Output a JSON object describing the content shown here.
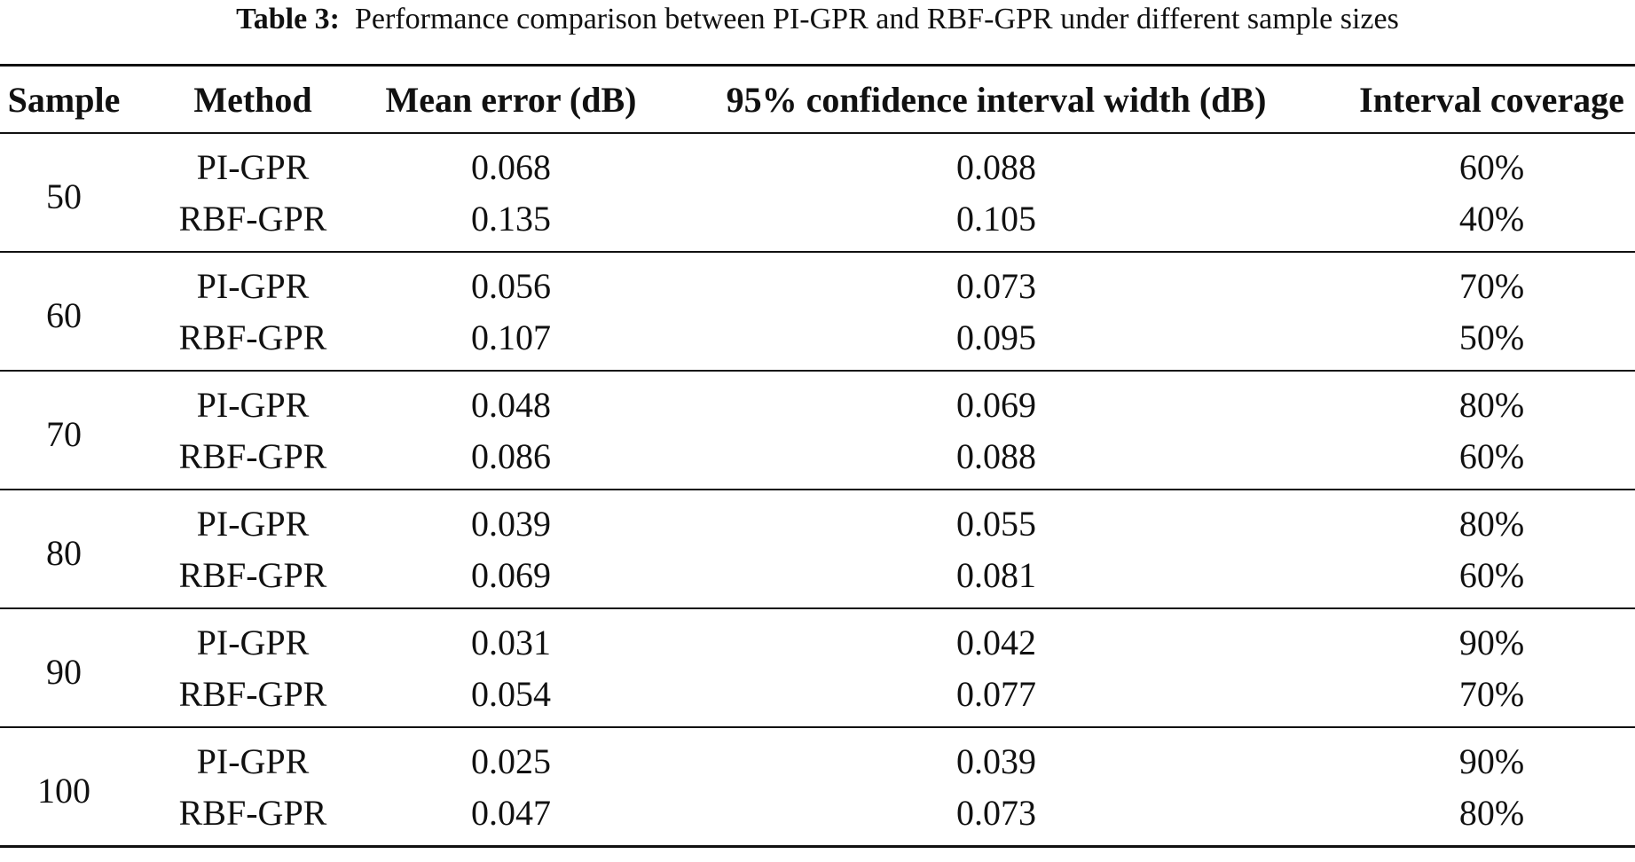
{
  "caption": {
    "label": "Table 3:",
    "text": "Performance comparison between PI-GPR and RBF-GPR under different sample sizes"
  },
  "table": {
    "headers": [
      "Sample",
      "Method",
      "Mean error (dB)",
      "95% confidence interval width (dB)",
      "Interval coverage"
    ],
    "groups": [
      {
        "sample": "50",
        "rows": [
          {
            "method": "PI-GPR",
            "mean_error": "0.068",
            "ci_width": "0.088",
            "coverage": "60%"
          },
          {
            "method": "RBF-GPR",
            "mean_error": "0.135",
            "ci_width": "0.105",
            "coverage": "40%"
          }
        ]
      },
      {
        "sample": "60",
        "rows": [
          {
            "method": "PI-GPR",
            "mean_error": "0.056",
            "ci_width": "0.073",
            "coverage": "70%"
          },
          {
            "method": "RBF-GPR",
            "mean_error": "0.107",
            "ci_width": "0.095",
            "coverage": "50%"
          }
        ]
      },
      {
        "sample": "70",
        "rows": [
          {
            "method": "PI-GPR",
            "mean_error": "0.048",
            "ci_width": "0.069",
            "coverage": "80%"
          },
          {
            "method": "RBF-GPR",
            "mean_error": "0.086",
            "ci_width": "0.088",
            "coverage": "60%"
          }
        ]
      },
      {
        "sample": "80",
        "rows": [
          {
            "method": "PI-GPR",
            "mean_error": "0.039",
            "ci_width": "0.055",
            "coverage": "80%"
          },
          {
            "method": "RBF-GPR",
            "mean_error": "0.069",
            "ci_width": "0.081",
            "coverage": "60%"
          }
        ]
      },
      {
        "sample": "90",
        "rows": [
          {
            "method": "PI-GPR",
            "mean_error": "0.031",
            "ci_width": "0.042",
            "coverage": "90%"
          },
          {
            "method": "RBF-GPR",
            "mean_error": "0.054",
            "ci_width": "0.077",
            "coverage": "70%"
          }
        ]
      },
      {
        "sample": "100",
        "rows": [
          {
            "method": "PI-GPR",
            "mean_error": "0.025",
            "ci_width": "0.039",
            "coverage": "90%"
          },
          {
            "method": "RBF-GPR",
            "mean_error": "0.047",
            "ci_width": "0.073",
            "coverage": "80%"
          }
        ]
      }
    ]
  }
}
